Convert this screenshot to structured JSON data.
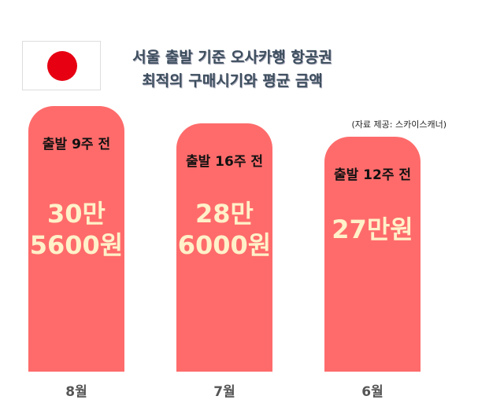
{
  "chart_data": {
    "type": "bar",
    "title": "서울 출발 기준 오사카행 항공권",
    "subtitle": "최적의 구매시기와 평균 금액",
    "source": "(자료 제공: 스카이스캐너)",
    "categories": [
      "8월",
      "7월",
      "6월"
    ],
    "annotations": [
      "출발 9주 전",
      "출발 16주 전",
      "출발 12주 전"
    ],
    "values": [
      305600,
      286000,
      270000
    ],
    "value_labels": [
      "30만\n5600원",
      "28만\n6000원",
      "27만원"
    ],
    "color": "#ff6b6b"
  }
}
